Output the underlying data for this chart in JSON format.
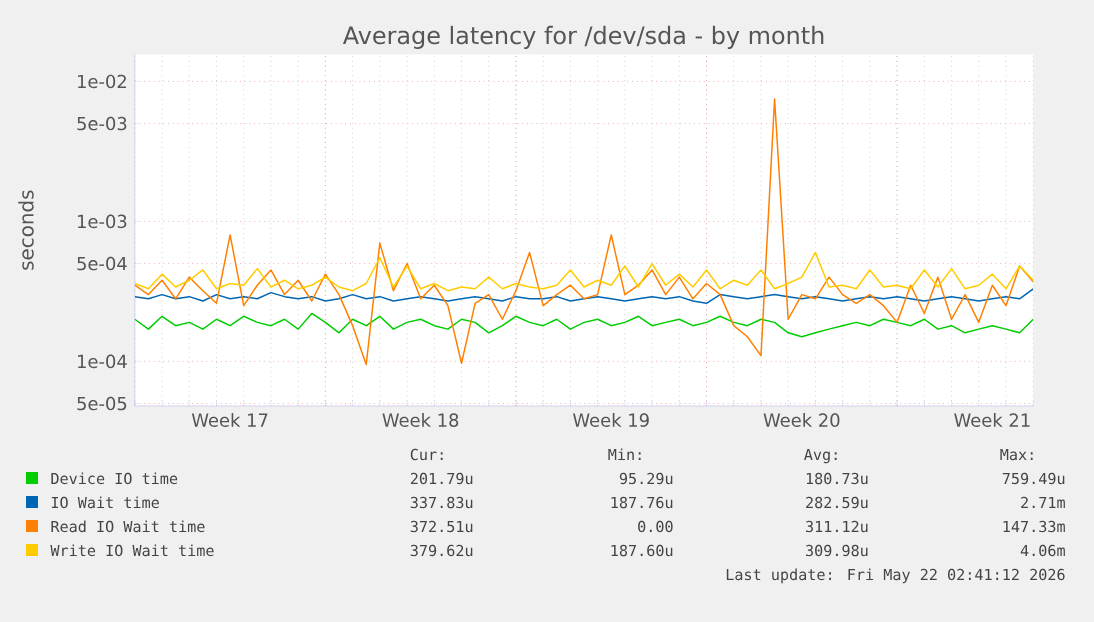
{
  "chart_data": {
    "type": "line",
    "title": "Average latency for /dev/sda - by month",
    "ylabel": "seconds",
    "categories": [
      null,
      null,
      null,
      null,
      null,
      null,
      null,
      "Week 17",
      null,
      null,
      null,
      null,
      null,
      null,
      null,
      null,
      null,
      null,
      null,
      null,
      null,
      "Week 18",
      null,
      null,
      null,
      null,
      null,
      null,
      null,
      null,
      null,
      null,
      null,
      null,
      null,
      "Week 19",
      null,
      null,
      null,
      null,
      null,
      null,
      null,
      null,
      null,
      null,
      null,
      null,
      null,
      "Week 20",
      null,
      null,
      null,
      null,
      null,
      null,
      null,
      null,
      null,
      null,
      null,
      null,
      null,
      "Week 21",
      null,
      null,
      null
    ],
    "series": [
      {
        "name": "Device IO time",
        "color": "#00cc00",
        "values": [
          0.0002,
          0.00017,
          0.00021,
          0.00018,
          0.00019,
          0.00017,
          0.0002,
          0.00018,
          0.00021,
          0.00019,
          0.00018,
          0.0002,
          0.00017,
          0.00022,
          0.00019,
          0.00016,
          0.0002,
          0.00018,
          0.00021,
          0.00017,
          0.00019,
          0.0002,
          0.00018,
          0.00017,
          0.0002,
          0.00019,
          0.00016,
          0.00018,
          0.00021,
          0.00019,
          0.00018,
          0.0002,
          0.00017,
          0.00019,
          0.0002,
          0.00018,
          0.00019,
          0.00021,
          0.00018,
          0.00019,
          0.0002,
          0.00018,
          0.00019,
          0.00021,
          0.00019,
          0.00018,
          0.0002,
          0.00019,
          0.00016,
          0.00015,
          0.00016,
          0.00017,
          0.00018,
          0.00019,
          0.00018,
          0.0002,
          0.00019,
          0.00018,
          0.0002,
          0.00017,
          0.00018,
          0.00016,
          0.00017,
          0.00018,
          0.00017,
          0.00016,
          0.0002
        ]
      },
      {
        "name": "IO Wait time",
        "color": "#0066b3",
        "values": [
          0.00029,
          0.00028,
          0.0003,
          0.00028,
          0.00029,
          0.00027,
          0.0003,
          0.00028,
          0.00029,
          0.00028,
          0.00031,
          0.00029,
          0.00028,
          0.00029,
          0.00027,
          0.00028,
          0.0003,
          0.00028,
          0.00029,
          0.00027,
          0.00028,
          0.00029,
          0.00028,
          0.00027,
          0.00028,
          0.00029,
          0.00028,
          0.00027,
          0.00029,
          0.00028,
          0.00028,
          0.00029,
          0.00027,
          0.00028,
          0.00029,
          0.00028,
          0.00027,
          0.00028,
          0.00029,
          0.00028,
          0.00029,
          0.00027,
          0.00026,
          0.0003,
          0.00029,
          0.00028,
          0.00029,
          0.0003,
          0.00029,
          0.00028,
          0.00029,
          0.00028,
          0.00027,
          0.00028,
          0.00029,
          0.00028,
          0.00029,
          0.00028,
          0.00027,
          0.00028,
          0.00029,
          0.00028,
          0.00027,
          0.00028,
          0.00029,
          0.00028,
          0.00033
        ]
      },
      {
        "name": "Read IO Wait time",
        "color": "#ff8000",
        "values": [
          0.00035,
          0.0003,
          0.00038,
          0.00028,
          0.0004,
          0.00032,
          0.00026,
          0.0008,
          0.00025,
          0.00035,
          0.00045,
          0.0003,
          0.00038,
          0.00027,
          0.00042,
          0.0003,
          0.00018,
          9.5e-05,
          0.0007,
          0.00032,
          0.0005,
          0.00028,
          0.00035,
          0.00025,
          9.7e-05,
          0.00026,
          0.0003,
          0.0002,
          0.00032,
          0.0006,
          0.00025,
          0.0003,
          0.00035,
          0.00028,
          0.0003,
          0.0008,
          0.0003,
          0.00035,
          0.00045,
          0.0003,
          0.0004,
          0.00028,
          0.00036,
          0.0003,
          0.00018,
          0.00015,
          0.00011,
          0.0075,
          0.0002,
          0.0003,
          0.00028,
          0.0004,
          0.0003,
          0.00026,
          0.0003,
          0.00025,
          0.00019,
          0.00035,
          0.00022,
          0.0004,
          0.0002,
          0.0003,
          0.00019,
          0.00035,
          0.00025,
          0.00048,
          0.00037
        ]
      },
      {
        "name": "Write IO Wait time",
        "color": "#ffcc00",
        "values": [
          0.00036,
          0.00033,
          0.00042,
          0.00034,
          0.00038,
          0.00045,
          0.00033,
          0.00036,
          0.00035,
          0.00046,
          0.00034,
          0.00038,
          0.00033,
          0.00035,
          0.0004,
          0.00034,
          0.00032,
          0.00036,
          0.00055,
          0.00034,
          0.00048,
          0.00033,
          0.00036,
          0.00032,
          0.00034,
          0.00033,
          0.0004,
          0.00033,
          0.00036,
          0.00034,
          0.00033,
          0.00035,
          0.00045,
          0.00034,
          0.00038,
          0.00035,
          0.00048,
          0.00034,
          0.0005,
          0.00035,
          0.00042,
          0.00034,
          0.00045,
          0.00033,
          0.00038,
          0.00035,
          0.00045,
          0.00033,
          0.00036,
          0.0004,
          0.0006,
          0.00034,
          0.00035,
          0.00033,
          0.00045,
          0.00034,
          0.00035,
          0.00033,
          0.00045,
          0.00034,
          0.00046,
          0.00033,
          0.00035,
          0.00042,
          0.00033,
          0.00048,
          0.00038
        ]
      }
    ],
    "ylim": [
      4.8e-05,
      0.0156
    ],
    "yticks": [
      {
        "value": 5e-05,
        "label": "5e-05"
      },
      {
        "value": 0.0001,
        "label": "1e-04"
      },
      {
        "value": 0.0005,
        "label": "5e-04"
      },
      {
        "value": 0.001,
        "label": "1e-03"
      },
      {
        "value": 0.005,
        "label": "5e-03"
      },
      {
        "value": 0.01,
        "label": "1e-02"
      }
    ],
    "log": "y",
    "grid": true,
    "legend": "bottom",
    "marker": "none",
    "line_style": "solid",
    "annotations": [
      "Cur:",
      "Min:",
      "Avg:",
      "Max:",
      "201.79u",
      "95.29u",
      "180.73u",
      "759.49u",
      "337.83u",
      "187.76u",
      "282.59u",
      "2.71m",
      "372.51u",
      "0.00",
      "311.12u",
      "147.33m",
      "379.62u",
      "187.60u",
      "309.98u",
      "4.06m",
      "Last update: Fri May 22 02:41:12 2026"
    ]
  }
}
